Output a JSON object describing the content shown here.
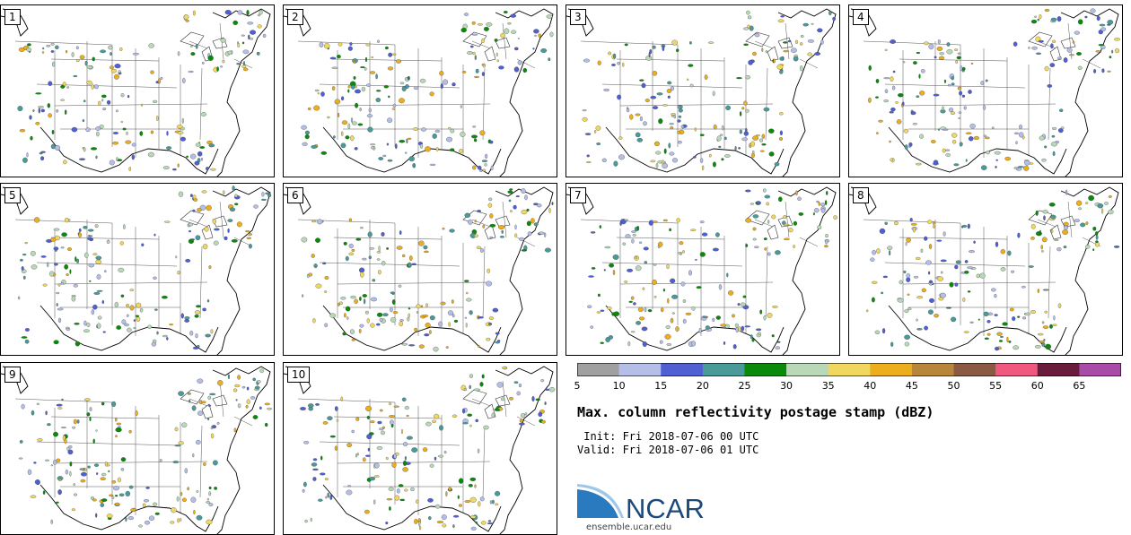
{
  "members": [
    "1",
    "2",
    "3",
    "4",
    "5",
    "6",
    "7",
    "8",
    "9",
    "10"
  ],
  "colorbar": {
    "ticks": [
      "5",
      "10",
      "15",
      "20",
      "25",
      "30",
      "35",
      "40",
      "45",
      "50",
      "55",
      "60",
      "65"
    ],
    "colors": [
      "#a0a0a0",
      "#b4bee6",
      "#5060d2",
      "#4a9a9a",
      "#0a8a0a",
      "#b8d8b8",
      "#f0d860",
      "#ecae1e",
      "#b8863a",
      "#8a5a44",
      "#f05880",
      "#6a1c3c",
      "#a84ca8"
    ]
  },
  "title": "Max. column reflectivity postage stamp (dBZ)",
  "init": " Init: Fri 2018-07-06 00 UTC",
  "valid": "Valid: Fri 2018-07-06 01 UTC",
  "logo": {
    "text": "NCAR",
    "url": "ensemble.ucar.edu",
    "brand_color": "#1a4a7a",
    "swoosh_color": "#2a7ac0"
  }
}
